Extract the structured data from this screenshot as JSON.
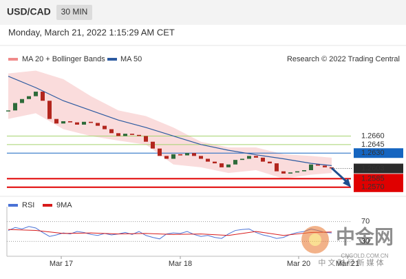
{
  "header": {
    "symbol": "USD/CAD",
    "interval": "30 MIN",
    "datetime": "Monday, March 21, 2022 1:15:29 AM CET",
    "credit": "Research © 2022 Trading Central"
  },
  "watermark": {
    "logo": "中金网",
    "domain": "CNGOLD.COM.CN",
    "slogan": "中 文 财 经 新 媒 体"
  },
  "chart_data": [
    {
      "type": "candlestick",
      "xlim": [
        -0.2,
        49.8
      ],
      "xticks": [
        {
          "value": 7.7,
          "label": "Mar 17"
        },
        {
          "value": 25,
          "label": "Mar 18"
        },
        {
          "value": 42.2,
          "label": "Mar 20"
        },
        {
          "value": 49.3,
          "label": "Mar 21"
        }
      ],
      "ylim": [
        1.2554,
        1.2778
      ],
      "up_color": "#2e6b3a",
      "down_color": "#b3261e",
      "close": [
        1.2705,
        1.2718,
        1.2725,
        1.273,
        1.2738,
        1.2722,
        1.269,
        1.2682,
        1.2686,
        1.2684,
        1.268,
        1.2685,
        1.2683,
        1.2678,
        1.2672,
        1.2665,
        1.266,
        1.2664,
        1.2662,
        1.266,
        1.265,
        1.2638,
        1.2625,
        1.262,
        1.2628,
        1.2626,
        1.263,
        1.2625,
        1.262,
        1.2615,
        1.2612,
        1.2605,
        1.261,
        1.2618,
        1.262,
        1.2625,
        1.2622,
        1.2615,
        1.2612,
        1.2598,
        1.2594,
        1.2596,
        1.2598,
        1.26,
        1.261,
        1.2608,
        1.2605,
        1.2603
      ],
      "bands": {
        "name": "MA 20 + Bollinger Bands",
        "color": "#f08a8a",
        "x": [
          0,
          4,
          8,
          12,
          16,
          20,
          24,
          28,
          32,
          36,
          40,
          44,
          47
        ],
        "upper": [
          1.277,
          1.2775,
          1.276,
          1.273,
          1.2705,
          1.2695,
          1.2675,
          1.265,
          1.264,
          1.264,
          1.2628,
          1.2625,
          1.2622
        ],
        "lower": [
          1.269,
          1.27,
          1.2672,
          1.266,
          1.2652,
          1.2645,
          1.261,
          1.2605,
          1.2595,
          1.26,
          1.2585,
          1.2592,
          1.2595
        ]
      },
      "series": [
        {
          "name": "MA 50",
          "color": "#2c5aa0",
          "x": [
            0,
            4,
            8,
            12,
            16,
            20,
            24,
            28,
            32,
            36,
            40,
            44,
            47
          ],
          "values": [
            1.2765,
            1.2745,
            1.2722,
            1.2705,
            1.2688,
            1.2675,
            1.266,
            1.2645,
            1.2635,
            1.2627,
            1.262,
            1.2612,
            1.2608
          ]
        }
      ],
      "levels": [
        {
          "value": 1.266,
          "label": "1.2660",
          "color": "#7cb342",
          "kind": "text"
        },
        {
          "value": 1.2645,
          "label": "1.2645",
          "color": "#7cb342",
          "kind": "text"
        },
        {
          "value": 1.263,
          "label": "1.2630",
          "color": "#1565c0",
          "kind": "box"
        },
        {
          "value": 1.2603,
          "label": "1.2603",
          "color": "#2b2b2b",
          "kind": "box"
        },
        {
          "value": 1.2585,
          "label": "1.2585",
          "color": "#e00000",
          "kind": "box"
        },
        {
          "value": 1.257,
          "label": "1.2570",
          "color": "#e00000",
          "kind": "box"
        }
      ]
    },
    {
      "type": "line",
      "ylim": [
        0,
        100
      ],
      "yticks": [
        30,
        70
      ],
      "series": [
        {
          "name": "RSI",
          "color": "#4a72d6",
          "x": [
            0,
            1,
            2,
            3,
            4,
            5,
            6,
            7,
            8,
            9,
            10,
            11,
            12,
            13,
            14,
            15,
            16,
            17,
            18,
            19,
            20,
            21,
            22,
            23,
            24,
            25,
            26,
            27,
            28,
            29,
            30,
            31,
            32,
            33,
            34,
            35,
            36,
            37,
            38,
            39,
            40,
            41,
            42,
            43,
            44,
            45,
            46,
            47
          ],
          "values": [
            52,
            58,
            55,
            60,
            57,
            48,
            40,
            43,
            47,
            45,
            50,
            48,
            44,
            42,
            46,
            43,
            45,
            48,
            44,
            50,
            42,
            38,
            35,
            45,
            47,
            46,
            50,
            44,
            40,
            42,
            38,
            36,
            45,
            52,
            54,
            55,
            48,
            43,
            40,
            36,
            38,
            44,
            48,
            50,
            55,
            52,
            48,
            47
          ]
        },
        {
          "name": "9MA",
          "color": "#d81b1b",
          "x": [
            0,
            4,
            8,
            12,
            16,
            20,
            24,
            28,
            32,
            36,
            40,
            44,
            47
          ],
          "values": [
            54,
            52,
            46,
            47,
            45,
            46,
            44,
            45,
            42,
            50,
            42,
            48,
            49
          ]
        }
      ]
    }
  ]
}
